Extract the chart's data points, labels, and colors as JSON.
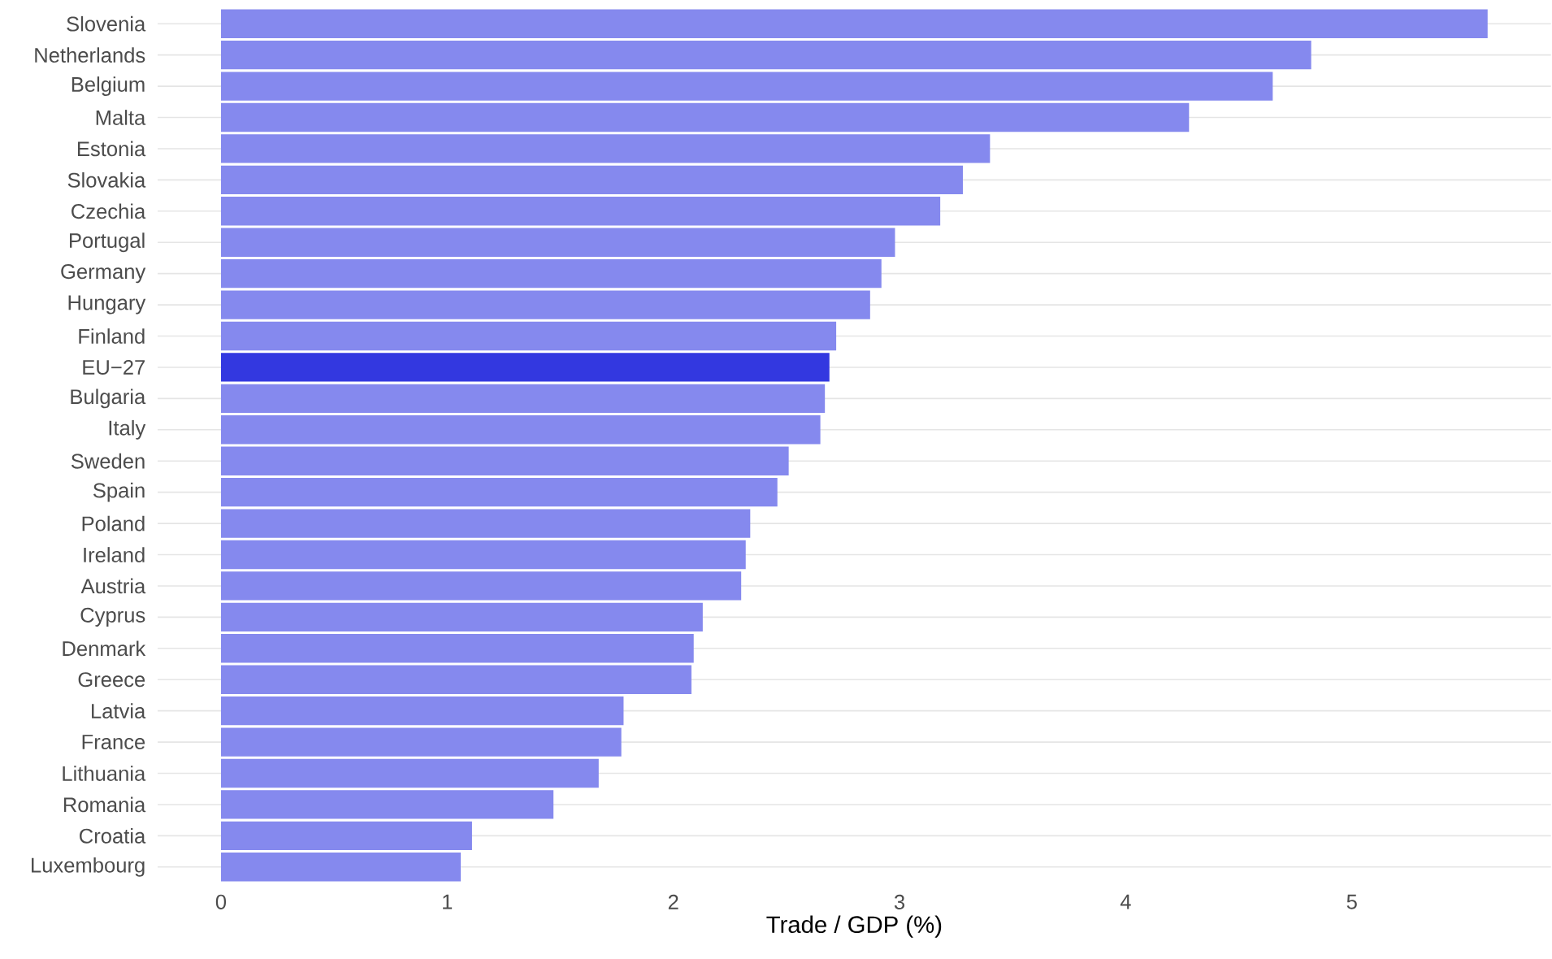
{
  "chart_data": {
    "type": "bar",
    "orientation": "horizontal",
    "xlabel": "Trade / GDP (%)",
    "categories": [
      "Slovenia",
      "Netherlands",
      "Belgium",
      "Malta",
      "Estonia",
      "Slovakia",
      "Czechia",
      "Portugal",
      "Germany",
      "Hungary",
      "Finland",
      "EU−27",
      "Bulgaria",
      "Italy",
      "Sweden",
      "Spain",
      "Poland",
      "Ireland",
      "Austria",
      "Cyprus",
      "Denmark",
      "Greece",
      "Latvia",
      "France",
      "Lithuania",
      "Romania",
      "Croatia",
      "Luxembourg"
    ],
    "values": [
      5.6,
      4.82,
      4.65,
      4.28,
      3.4,
      3.28,
      3.18,
      2.98,
      2.92,
      2.87,
      2.72,
      2.69,
      2.67,
      2.65,
      2.51,
      2.46,
      2.34,
      2.32,
      2.3,
      2.13,
      2.09,
      2.08,
      1.78,
      1.77,
      1.67,
      1.47,
      1.11,
      1.06
    ],
    "colors": [
      "#8589ee",
      "#8589ee",
      "#8589ee",
      "#8589ee",
      "#8589ee",
      "#8589ee",
      "#8589ee",
      "#8589ee",
      "#8589ee",
      "#8589ee",
      "#8589ee",
      "#3338e0",
      "#8589ee",
      "#8589ee",
      "#8589ee",
      "#8589ee",
      "#8589ee",
      "#8589ee",
      "#8589ee",
      "#8589ee",
      "#8589ee",
      "#8589ee",
      "#8589ee",
      "#8589ee",
      "#8589ee",
      "#8589ee",
      "#8589ee",
      "#8589ee"
    ],
    "xlim": [
      -0.28,
      5.88
    ],
    "xticks": [
      0,
      1,
      2,
      3,
      4,
      5
    ],
    "grid": "y"
  }
}
